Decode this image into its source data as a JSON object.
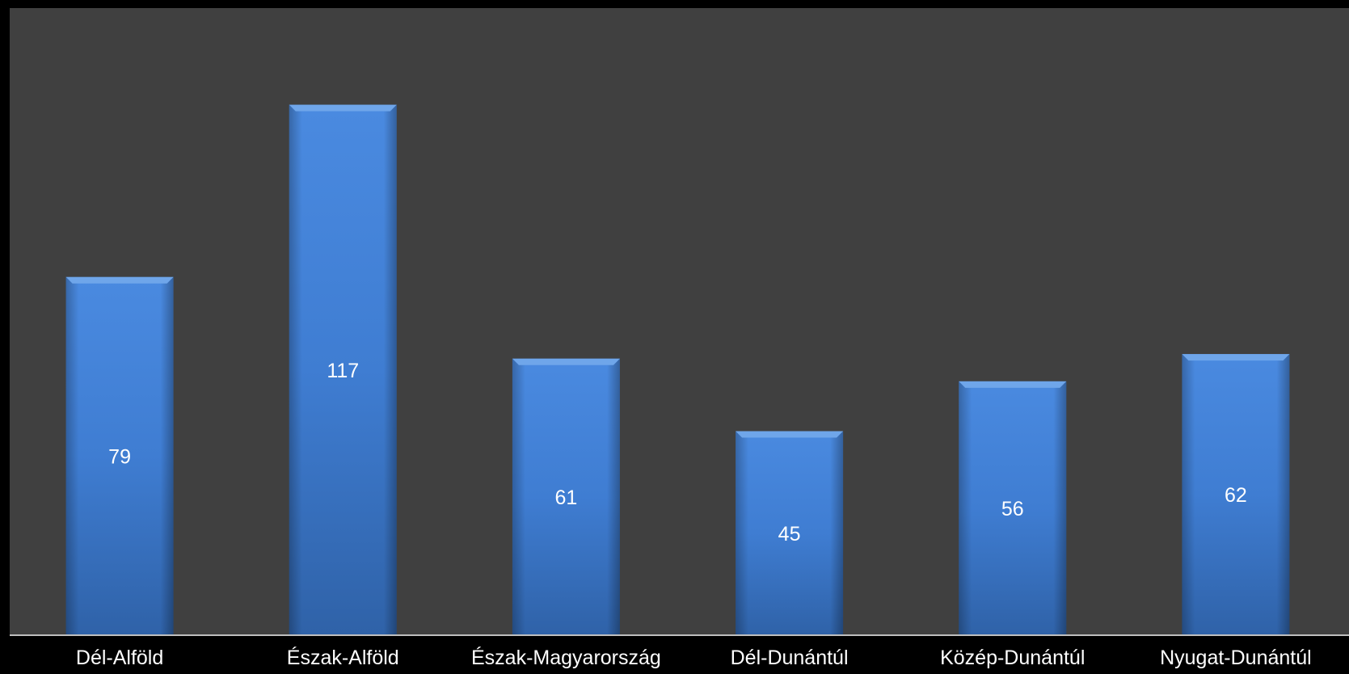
{
  "chart_data": {
    "type": "bar",
    "categories": [
      "Dél-Alföld",
      "Észak-Alföld",
      "Észak-Magyarország",
      "Dél-Dunántúl",
      "Közép-Dunántúl",
      "Nyugat-Dunántúl"
    ],
    "values": [
      79,
      117,
      61,
      45,
      56,
      62
    ],
    "title": "",
    "xlabel": "",
    "ylabel": "",
    "ylim": [
      0,
      140
    ],
    "grid": false,
    "legend": "none",
    "data_labels": "inside-center",
    "colors": {
      "background": "#000000",
      "plot_area": "#404040",
      "bar": "#4080d0",
      "bar_dark": "#2f5f9f",
      "axis": "#bfbfbf",
      "text": "#ffffff"
    }
  }
}
